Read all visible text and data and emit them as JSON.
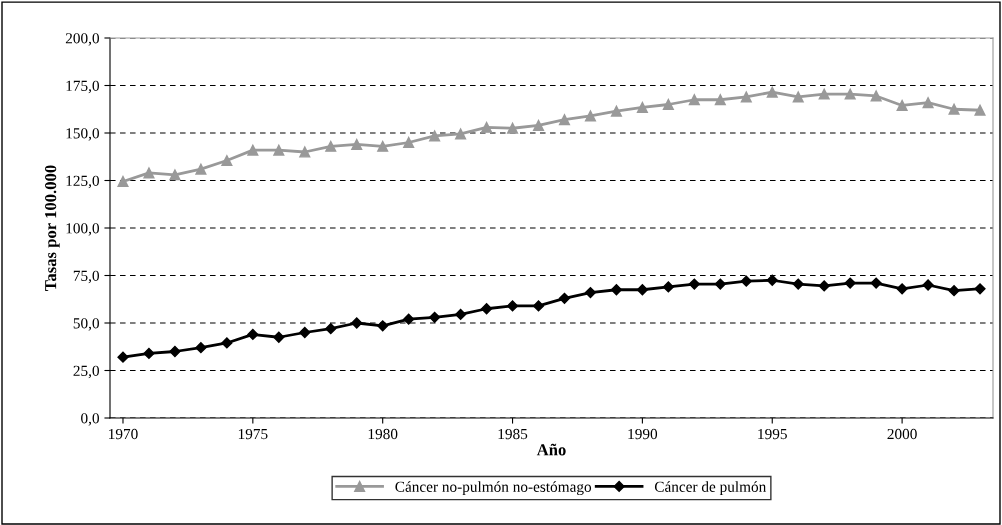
{
  "chart_data": {
    "type": "line",
    "xlabel": "Año",
    "ylabel": "Tasas por 100.000",
    "x": [
      1970,
      1971,
      1972,
      1973,
      1974,
      1975,
      1976,
      1977,
      1978,
      1979,
      1980,
      1981,
      1982,
      1983,
      1984,
      1985,
      1986,
      1987,
      1988,
      1989,
      1990,
      1991,
      1992,
      1993,
      1994,
      1995,
      1996,
      1997,
      1998,
      1999,
      2000,
      2001,
      2002,
      2003
    ],
    "series": [
      {
        "name": "Cáncer no-pulmón no-estómago",
        "color": "#999999",
        "marker": "triangle",
        "values": [
          124.5,
          129,
          128,
          131,
          135.5,
          141,
          141,
          140,
          143,
          144,
          143,
          145,
          148.5,
          149.5,
          153,
          152.5,
          154,
          157,
          159,
          161.5,
          163.5,
          165,
          167.5,
          167.5,
          169,
          171.5,
          169,
          170.5,
          170.5,
          169.5,
          164.5,
          166,
          162.5,
          162
        ]
      },
      {
        "name": "Cáncer de pulmón",
        "color": "#000000",
        "marker": "diamond",
        "values": [
          32,
          34,
          35,
          37,
          39.5,
          44,
          42.5,
          45,
          47,
          50,
          48.5,
          52,
          53,
          54.5,
          57.5,
          59,
          59,
          63,
          66,
          67.5,
          67.5,
          69,
          70.5,
          70.5,
          72,
          72.5,
          70.5,
          69.5,
          71,
          71,
          68,
          70,
          67,
          68
        ]
      }
    ],
    "xlim": [
      1969.5,
      2003.5
    ],
    "xticks": [
      1970,
      1975,
      1980,
      1985,
      1990,
      1995,
      2000
    ],
    "ylim": [
      0,
      200
    ],
    "yticks": [
      {
        "value": 0,
        "label": "0,0"
      },
      {
        "value": 25,
        "label": "25,0"
      },
      {
        "value": 50,
        "label": "50,0"
      },
      {
        "value": 75,
        "label": "75,0"
      },
      {
        "value": 100,
        "label": "100,0"
      },
      {
        "value": 125,
        "label": "125,0"
      },
      {
        "value": 150,
        "label": "150,0"
      },
      {
        "value": 175,
        "label": "175,0"
      },
      {
        "value": 200,
        "label": "200,0"
      }
    ],
    "grid": "y",
    "legend": "bottom",
    "line_style": "solid"
  }
}
